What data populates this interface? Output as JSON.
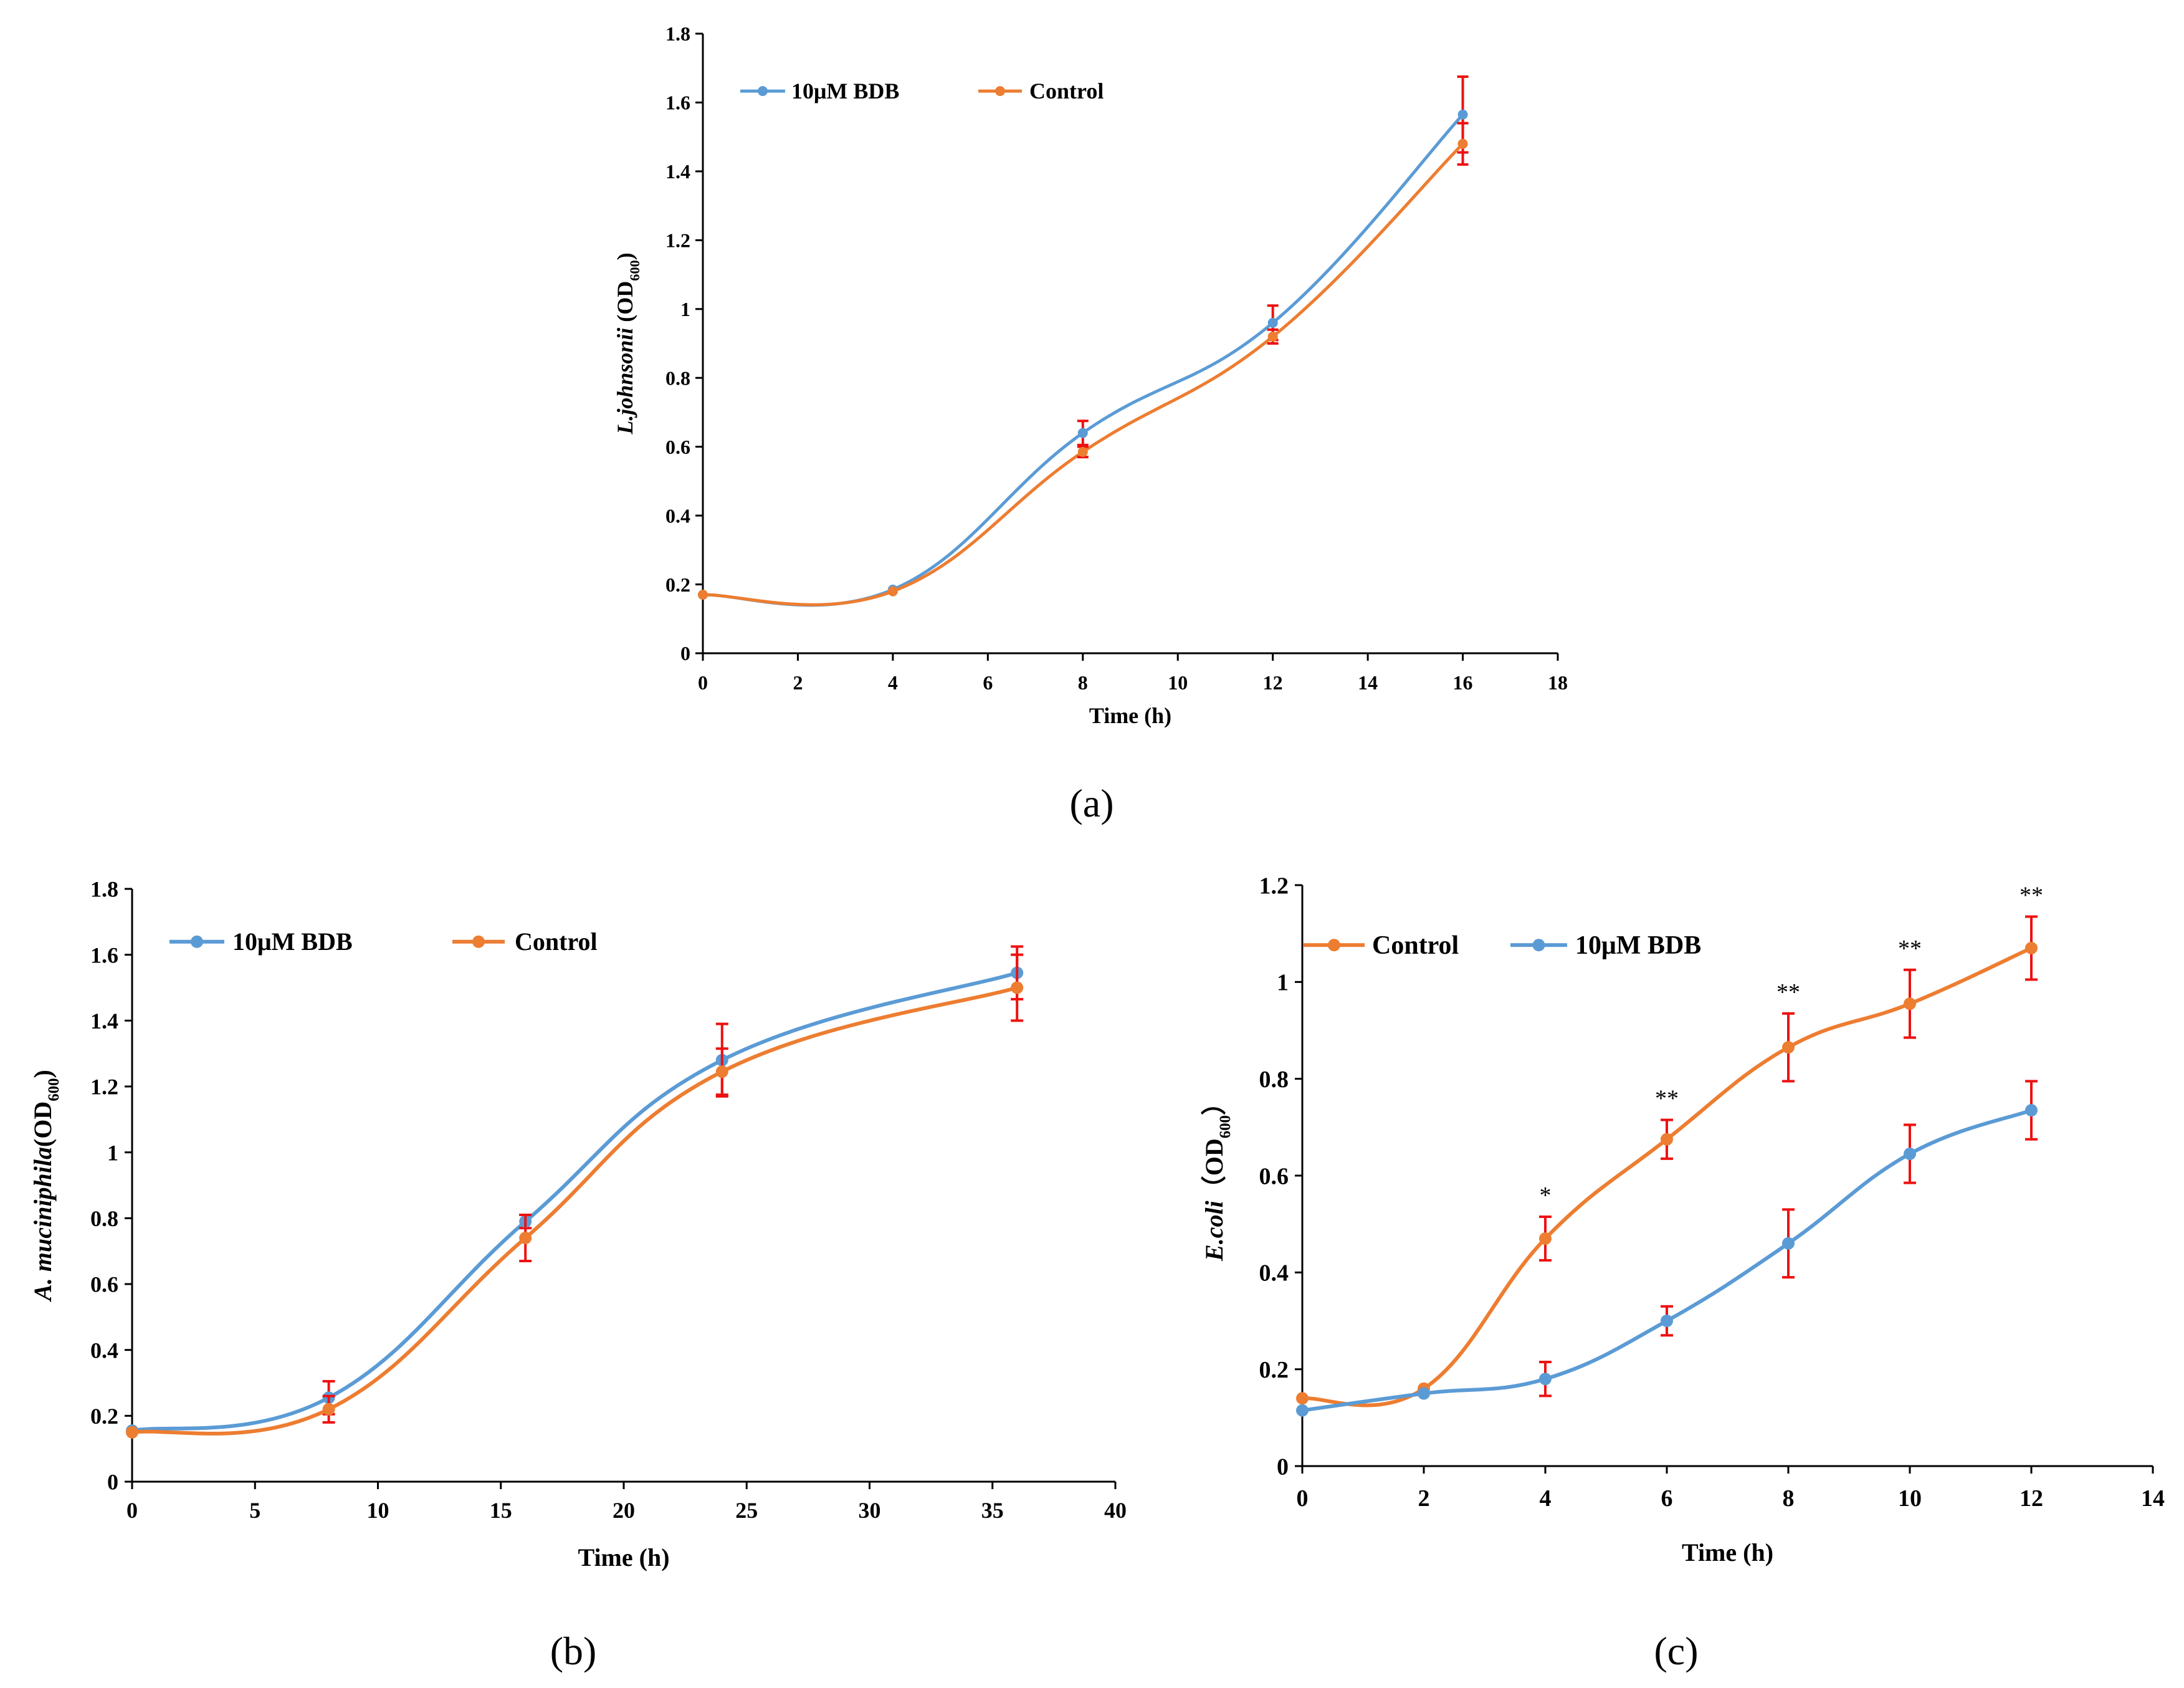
{
  "figure_labels": [
    "(a)",
    "(b)",
    "(c)"
  ],
  "colors": {
    "blue": "#5b9bd5",
    "orange": "#ed7d31",
    "error_bar": "#ee1111",
    "axis": "#000000"
  },
  "chart_data": [
    {
      "id": "a",
      "type": "line",
      "panel_label": "(a)",
      "xlabel": "Time (h)",
      "ylabel_parts": [
        "L.johnsonii",
        " (OD",
        "600",
        ")"
      ],
      "xlim": [
        0,
        18
      ],
      "ylim": [
        0,
        1.8
      ],
      "xticks": [
        0,
        2,
        4,
        6,
        8,
        10,
        12,
        14,
        16,
        18
      ],
      "yticks": [
        0,
        0.2,
        0.4,
        0.6,
        0.8,
        1,
        1.2,
        1.4,
        1.6,
        1.8
      ],
      "ytick_labels": [
        "0",
        "0.2",
        "0.4",
        "0.6",
        "0.8",
        "1",
        "1.2",
        "1.4",
        "1.6",
        "1.8"
      ],
      "x": [
        0,
        4,
        8,
        12,
        16
      ],
      "legend": [
        "10μM BDB",
        "Control"
      ],
      "series": [
        {
          "name": "10μM BDB",
          "color": "blue",
          "values": [
            0.17,
            0.185,
            0.64,
            0.96,
            1.565
          ],
          "errors": [
            0,
            0,
            0.035,
            0.05,
            0.11
          ]
        },
        {
          "name": "Control",
          "color": "orange",
          "values": [
            0.17,
            0.18,
            0.585,
            0.92,
            1.48
          ],
          "errors": [
            0,
            0,
            0.015,
            0.02,
            0.06
          ]
        }
      ],
      "annotations": []
    },
    {
      "id": "b",
      "type": "line",
      "panel_label": "(b)",
      "xlabel": "Time (h)",
      "ylabel_parts": [
        "A. muciniphila",
        "(OD",
        "600",
        ")"
      ],
      "xlim": [
        0,
        40
      ],
      "ylim": [
        0,
        1.8
      ],
      "xticks": [
        0,
        5,
        10,
        15,
        20,
        25,
        30,
        35,
        40
      ],
      "yticks": [
        0,
        0.2,
        0.4,
        0.6,
        0.8,
        1,
        1.2,
        1.4,
        1.6,
        1.8
      ],
      "ytick_labels": [
        "0",
        "0.2",
        "0.4",
        "0.6",
        "0.8",
        "1",
        "1.2",
        "1.4",
        "1.6",
        "1.8"
      ],
      "x": [
        0,
        8,
        16,
        24,
        36
      ],
      "legend": [
        "10μM BDB",
        "Control"
      ],
      "series": [
        {
          "name": "10μM BDB",
          "color": "blue",
          "values": [
            0.155,
            0.255,
            0.79,
            1.28,
            1.545
          ],
          "errors": [
            0,
            0.05,
            0.02,
            0.11,
            0.08
          ]
        },
        {
          "name": "Control",
          "color": "orange",
          "values": [
            0.15,
            0.22,
            0.74,
            1.245,
            1.5
          ],
          "errors": [
            0,
            0.04,
            0.07,
            0.07,
            0.1
          ]
        }
      ],
      "annotations": []
    },
    {
      "id": "c",
      "type": "line",
      "panel_label": "(c)",
      "xlabel": "Time (h)",
      "ylabel_parts": [
        "E.coli",
        "（OD",
        "600",
        "）"
      ],
      "xlim": [
        0,
        14
      ],
      "ylim": [
        0,
        1.2
      ],
      "xticks": [
        0,
        2,
        4,
        6,
        8,
        10,
        12,
        14
      ],
      "yticks": [
        0,
        0.2,
        0.4,
        0.6,
        0.8,
        1,
        1.2
      ],
      "ytick_labels": [
        "0",
        "0.2",
        "0.4",
        "0.6",
        "0.8",
        "1",
        "1.2"
      ],
      "x": [
        0,
        2,
        4,
        6,
        8,
        10,
        12
      ],
      "legend": [
        "Control",
        "10μM BDB"
      ],
      "series": [
        {
          "name": "Control",
          "color": "orange",
          "values": [
            0.14,
            0.16,
            0.47,
            0.675,
            0.865,
            0.955,
            1.07
          ],
          "errors": [
            0,
            0,
            0.045,
            0.04,
            0.07,
            0.07,
            0.065
          ]
        },
        {
          "name": "10μM BDB",
          "color": "blue",
          "values": [
            0.115,
            0.15,
            0.18,
            0.3,
            0.46,
            0.645,
            0.735
          ],
          "errors": [
            0,
            0,
            0.035,
            0.03,
            0.07,
            0.06,
            0.06
          ]
        }
      ],
      "annotations": [
        {
          "x": 4,
          "text": "*"
        },
        {
          "x": 6,
          "text": "**"
        },
        {
          "x": 8,
          "text": "**"
        },
        {
          "x": 10,
          "text": "**"
        },
        {
          "x": 12,
          "text": "**"
        }
      ]
    }
  ]
}
